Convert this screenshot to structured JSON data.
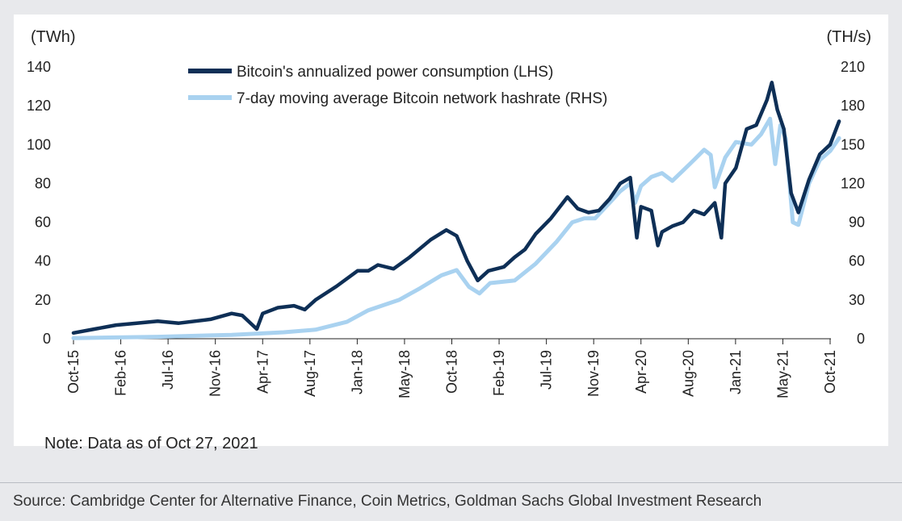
{
  "note": "Note: Data as of Oct 27, 2021",
  "source": "Source: Cambridge Center for Alternative Finance, Coin Metrics, Goldman Sachs Global Investment Research",
  "chart_data": {
    "type": "line",
    "left_unit": "(TWh)",
    "right_unit": "(TH/s)",
    "left_ticks": [
      "140",
      "120",
      "100",
      "80",
      "60",
      "40",
      "20",
      "0"
    ],
    "right_ticks": [
      "210",
      "180",
      "150",
      "120",
      "90",
      "60",
      "30",
      "0"
    ],
    "ylim_left": [
      0,
      140
    ],
    "ylim_right": [
      0,
      210
    ],
    "x_ticks": [
      "Oct-15",
      "Feb-16",
      "Jul-16",
      "Nov-16",
      "Apr-17",
      "Aug-17",
      "Jan-18",
      "May-18",
      "Oct-18",
      "Feb-19",
      "Jul-19",
      "Nov-19",
      "Apr-20",
      "Aug-20",
      "Jan-21",
      "May-21",
      "Oct-21"
    ],
    "grid": false,
    "legend_position": "top-center",
    "series": [
      {
        "name": "Bitcoin's annualized power consumption (LHS)",
        "axis": "left",
        "color": "#0e2f56",
        "points": [
          [
            "2015-10-01",
            3
          ],
          [
            "2015-12-01",
            5
          ],
          [
            "2016-02-01",
            7
          ],
          [
            "2016-04-01",
            8
          ],
          [
            "2016-06-01",
            9
          ],
          [
            "2016-08-01",
            8
          ],
          [
            "2016-11-01",
            10
          ],
          [
            "2017-01-01",
            13
          ],
          [
            "2017-02-01",
            12
          ],
          [
            "2017-03-15",
            5
          ],
          [
            "2017-04-01",
            13
          ],
          [
            "2017-05-15",
            16
          ],
          [
            "2017-07-01",
            17
          ],
          [
            "2017-08-01",
            15
          ],
          [
            "2017-09-01",
            20
          ],
          [
            "2017-11-01",
            27
          ],
          [
            "2018-01-01",
            35
          ],
          [
            "2018-02-01",
            35
          ],
          [
            "2018-03-01",
            38
          ],
          [
            "2018-04-15",
            36
          ],
          [
            "2018-06-01",
            42
          ],
          [
            "2018-08-01",
            51
          ],
          [
            "2018-09-15",
            56
          ],
          [
            "2018-10-15",
            53
          ],
          [
            "2018-11-15",
            40
          ],
          [
            "2018-12-15",
            30
          ],
          [
            "2019-01-15",
            35
          ],
          [
            "2019-03-01",
            37
          ],
          [
            "2019-04-01",
            42
          ],
          [
            "2019-05-01",
            46
          ],
          [
            "2019-06-01",
            54
          ],
          [
            "2019-07-15",
            62
          ],
          [
            "2019-09-01",
            73
          ],
          [
            "2019-10-01",
            67
          ],
          [
            "2019-11-01",
            65
          ],
          [
            "2019-12-01",
            66
          ],
          [
            "2020-01-01",
            72
          ],
          [
            "2020-02-01",
            80
          ],
          [
            "2020-03-01",
            83
          ],
          [
            "2020-03-20",
            52
          ],
          [
            "2020-04-01",
            68
          ],
          [
            "2020-05-01",
            66
          ],
          [
            "2020-05-20",
            48
          ],
          [
            "2020-06-01",
            55
          ],
          [
            "2020-07-01",
            58
          ],
          [
            "2020-08-01",
            60
          ],
          [
            "2020-09-01",
            66
          ],
          [
            "2020-10-01",
            64
          ],
          [
            "2020-11-01",
            70
          ],
          [
            "2020-11-20",
            52
          ],
          [
            "2020-12-01",
            80
          ],
          [
            "2021-01-01",
            88
          ],
          [
            "2021-02-01",
            108
          ],
          [
            "2021-03-01",
            110
          ],
          [
            "2021-04-01",
            123
          ],
          [
            "2021-04-15",
            132
          ],
          [
            "2021-05-01",
            118
          ],
          [
            "2021-05-20",
            108
          ],
          [
            "2021-06-10",
            75
          ],
          [
            "2021-07-01",
            65
          ],
          [
            "2021-08-01",
            82
          ],
          [
            "2021-09-01",
            95
          ],
          [
            "2021-10-01",
            100
          ],
          [
            "2021-10-27",
            112
          ]
        ]
      },
      {
        "name": "7-day moving average Bitcoin network hashrate (RHS)",
        "axis": "right",
        "color": "#a9d2f0",
        "points": [
          [
            "2015-10-01",
            0.5
          ],
          [
            "2016-06-01",
            1.5
          ],
          [
            "2017-01-01",
            3
          ],
          [
            "2017-06-01",
            5
          ],
          [
            "2017-09-01",
            7
          ],
          [
            "2017-12-01",
            13
          ],
          [
            "2018-02-01",
            22
          ],
          [
            "2018-05-01",
            30
          ],
          [
            "2018-07-01",
            39
          ],
          [
            "2018-09-01",
            49
          ],
          [
            "2018-10-15",
            53
          ],
          [
            "2018-11-20",
            40
          ],
          [
            "2018-12-20",
            35
          ],
          [
            "2019-01-20",
            43
          ],
          [
            "2019-04-01",
            45
          ],
          [
            "2019-06-01",
            58
          ],
          [
            "2019-08-01",
            75
          ],
          [
            "2019-09-15",
            90
          ],
          [
            "2019-10-20",
            93
          ],
          [
            "2019-11-20",
            93
          ],
          [
            "2020-01-01",
            105
          ],
          [
            "2020-02-01",
            114
          ],
          [
            "2020-03-01",
            120
          ],
          [
            "2020-03-15",
            105
          ],
          [
            "2020-04-01",
            118
          ],
          [
            "2020-05-01",
            125
          ],
          [
            "2020-06-01",
            128
          ],
          [
            "2020-07-01",
            122
          ],
          [
            "2020-08-01",
            130
          ],
          [
            "2020-09-01",
            138
          ],
          [
            "2020-10-01",
            146
          ],
          [
            "2020-10-20",
            142
          ],
          [
            "2020-11-01",
            117
          ],
          [
            "2020-12-01",
            140
          ],
          [
            "2021-01-01",
            152
          ],
          [
            "2021-02-15",
            150
          ],
          [
            "2021-03-15",
            158
          ],
          [
            "2021-04-10",
            170
          ],
          [
            "2021-04-25",
            135
          ],
          [
            "2021-05-10",
            165
          ],
          [
            "2021-05-25",
            155
          ],
          [
            "2021-06-15",
            90
          ],
          [
            "2021-07-01",
            88
          ],
          [
            "2021-08-01",
            120
          ],
          [
            "2021-09-01",
            138
          ],
          [
            "2021-10-01",
            145
          ],
          [
            "2021-10-27",
            155
          ]
        ]
      }
    ]
  }
}
